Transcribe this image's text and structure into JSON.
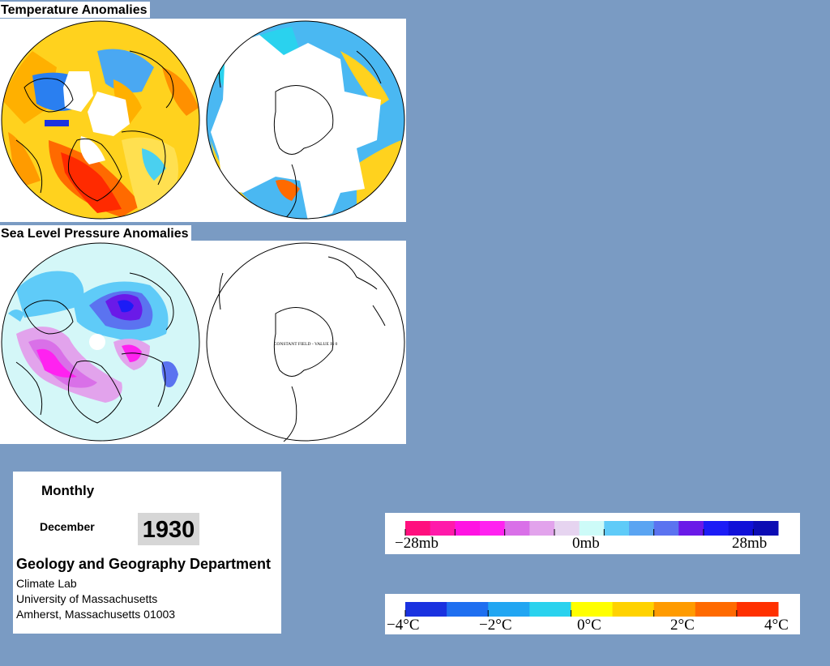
{
  "sections": {
    "temperature_title": "Temperature Anomalies",
    "pressure_title": "Sea Level Pressure Anomalies",
    "pressure_south_note": "CONSTANT FIELD - VALUE IS 0"
  },
  "info": {
    "period": "Monthly",
    "month": "December",
    "year": "1930",
    "department": "Geology and Geography Department",
    "lab": "Climate Lab",
    "university": "University of Massachusetts",
    "address": "Amherst, Massachusetts 01003"
  },
  "pressure_scale": {
    "labels": [
      "−28mb",
      "0mb",
      "28mb"
    ],
    "colors": [
      "#ff0f7e",
      "#ff1aaa",
      "#ff13e2",
      "#ff22f0",
      "#d970e8",
      "#e2a3ec",
      "#e6d4f0",
      "#cdfbf8",
      "#5fcbf8",
      "#5aa4f2",
      "#5b73f0",
      "#6a1ae8",
      "#1c1cf6",
      "#1010d8",
      "#0c0cb4"
    ]
  },
  "temperature_scale": {
    "labels": [
      "−4°C",
      "−2°C",
      "0°C",
      "2°C",
      "4°C"
    ],
    "colors": [
      "#1a32e0",
      "#1f6ff0",
      "#22a6f2",
      "#2ad2ee",
      "#ffff00",
      "#ffd200",
      "#ff9b00",
      "#ff6a00",
      "#ff3000"
    ]
  }
}
